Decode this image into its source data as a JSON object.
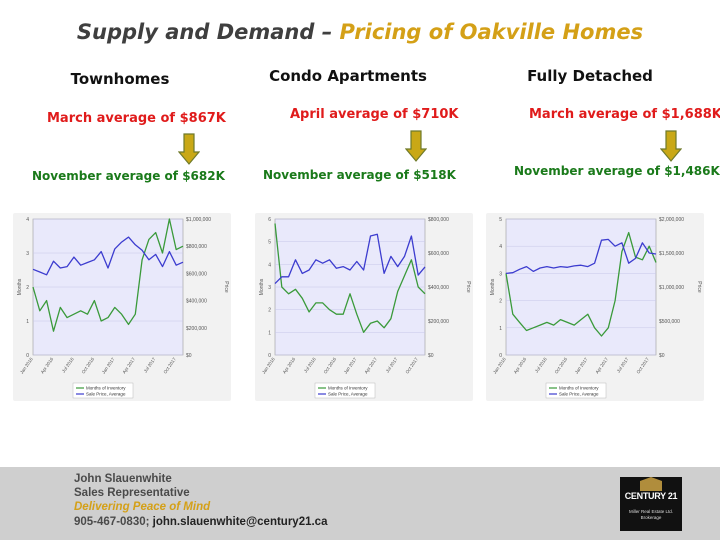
{
  "title": {
    "part1": "Supply and Demand –",
    "part2": "Pricing of Oakville Homes"
  },
  "columns": [
    {
      "heading": "Townhomes",
      "top_avg": "March average of $867K",
      "bottom_avg": "November average of $682K"
    },
    {
      "heading": "Condo Apartments",
      "top_avg": "April average of $710K",
      "bottom_avg": "November average of $518K"
    },
    {
      "heading": "Fully Detached",
      "top_avg": "March average of $1,688K",
      "bottom_avg": "November average of $1,486K"
    }
  ],
  "chart_data": [
    {
      "type": "line",
      "title": "Townhomes",
      "x": [
        "Jan 2016",
        "Feb 2016",
        "Mar 2016",
        "Apr 2016",
        "May 2016",
        "Jun 2016",
        "Jul 2016",
        "Aug 2016",
        "Sep 2016",
        "Oct 2016",
        "Nov 2016",
        "Dec 2016",
        "Jan 2017",
        "Feb 2017",
        "Mar 2017",
        "Apr 2017",
        "May 2017",
        "Jun 2017",
        "Jul 2017",
        "Aug 2017",
        "Sep 2017",
        "Oct 2017",
        "Nov 2017"
      ],
      "x_tick_labels": [
        "Jan 2016",
        "Apr 2016",
        "Jul 2016",
        "Oct 2016",
        "Jan 2017",
        "Apr 2017",
        "Jul 2017",
        "Oct 2017"
      ],
      "ylabel": "Months",
      "y2label": "Price",
      "ylim": [
        0,
        4
      ],
      "y2lim": [
        0,
        1000000
      ],
      "y_ticks": [
        "0",
        "1",
        "2",
        "3",
        "4"
      ],
      "y2_ticks": [
        "$0",
        "$200,000",
        "$400,000",
        "$600,000",
        "$800,000",
        "$1,000,000"
      ],
      "series": [
        {
          "name": "Months of Inventory",
          "color": "#3a9a3a",
          "axis": "left",
          "values": [
            2.0,
            1.3,
            1.6,
            0.7,
            1.4,
            1.1,
            1.2,
            1.3,
            1.2,
            1.6,
            1.0,
            1.1,
            1.4,
            1.2,
            0.9,
            1.2,
            2.8,
            3.4,
            3.6,
            3.0,
            4.0,
            3.1,
            3.2
          ]
        },
        {
          "name": "Sale Price, Average",
          "color": "#3c3ccf",
          "axis": "right",
          "values": [
            630000,
            610000,
            590000,
            690000,
            640000,
            650000,
            720000,
            660000,
            680000,
            700000,
            760000,
            640000,
            780000,
            830000,
            867000,
            810000,
            770000,
            700000,
            740000,
            650000,
            760000,
            660000,
            682000
          ]
        }
      ],
      "legend": [
        "Months of Inventory",
        "Sale Price, Average"
      ],
      "legend_position": "bottom",
      "grid": true
    },
    {
      "type": "line",
      "title": "Condo Apartments",
      "x": [
        "Jan 2016",
        "Feb 2016",
        "Mar 2016",
        "Apr 2016",
        "May 2016",
        "Jun 2016",
        "Jul 2016",
        "Aug 2016",
        "Sep 2016",
        "Oct 2016",
        "Nov 2016",
        "Dec 2016",
        "Jan 2017",
        "Feb 2017",
        "Mar 2017",
        "Apr 2017",
        "May 2017",
        "Jun 2017",
        "Jul 2017",
        "Aug 2017",
        "Sep 2017",
        "Oct 2017",
        "Nov 2017"
      ],
      "x_tick_labels": [
        "Jan 2016",
        "Apr 2016",
        "Jul 2016",
        "Oct 2016",
        "Jan 2017",
        "Apr 2017",
        "Jul 2017",
        "Oct 2017"
      ],
      "ylabel": "Months",
      "y2label": "Price",
      "ylim": [
        0,
        6
      ],
      "y2lim": [
        0,
        800000
      ],
      "y_ticks": [
        "0",
        "1",
        "2",
        "3",
        "4",
        "5",
        "6"
      ],
      "y2_ticks": [
        "$0",
        "$200,000",
        "$400,000",
        "$600,000",
        "$800,000"
      ],
      "series": [
        {
          "name": "Months of Inventory",
          "color": "#3a9a3a",
          "axis": "left",
          "values": [
            5.8,
            3.0,
            2.7,
            2.9,
            2.5,
            1.9,
            2.3,
            2.3,
            2.0,
            1.8,
            1.8,
            2.7,
            1.8,
            1.0,
            1.4,
            1.5,
            1.2,
            1.6,
            2.8,
            3.5,
            4.2,
            3.0,
            2.7
          ]
        },
        {
          "name": "Sale Price, Average",
          "color": "#3c3ccf",
          "axis": "right",
          "values": [
            420000,
            460000,
            460000,
            560000,
            480000,
            500000,
            560000,
            540000,
            560000,
            510000,
            520000,
            500000,
            550000,
            500000,
            700000,
            710000,
            480000,
            580000,
            520000,
            580000,
            700000,
            470000,
            518000
          ]
        }
      ],
      "legend": [
        "Months of Inventory",
        "Sale Price, Average"
      ],
      "legend_position": "bottom",
      "grid": true
    },
    {
      "type": "line",
      "title": "Fully Detached",
      "x": [
        "Jan 2016",
        "Feb 2016",
        "Mar 2016",
        "Apr 2016",
        "May 2016",
        "Jun 2016",
        "Jul 2016",
        "Aug 2016",
        "Sep 2016",
        "Oct 2016",
        "Nov 2016",
        "Dec 2016",
        "Jan 2017",
        "Feb 2017",
        "Mar 2017",
        "Apr 2017",
        "May 2017",
        "Jun 2017",
        "Jul 2017",
        "Aug 2017",
        "Sep 2017",
        "Oct 2017",
        "Nov 2017"
      ],
      "x_tick_labels": [
        "Jan 2016",
        "Apr 2016",
        "Jul 2016",
        "Oct 2016",
        "Jan 2017",
        "Apr 2017",
        "Jul 2017",
        "Oct 2017"
      ],
      "ylabel": "Months",
      "y2label": "Price",
      "ylim": [
        0,
        5
      ],
      "y2lim": [
        0,
        2000000
      ],
      "y_ticks": [
        "0",
        "1",
        "2",
        "3",
        "4",
        "5"
      ],
      "y2_ticks": [
        "$0",
        "$500,000",
        "$1,000,000",
        "$1,500,000",
        "$2,000,000"
      ],
      "series": [
        {
          "name": "Months of Inventory",
          "color": "#3a9a3a",
          "axis": "left",
          "values": [
            3.0,
            1.5,
            1.2,
            0.9,
            1.0,
            1.1,
            1.2,
            1.1,
            1.3,
            1.2,
            1.1,
            1.3,
            1.5,
            1.0,
            0.7,
            1.0,
            2.0,
            3.8,
            4.5,
            3.6,
            3.5,
            4.0,
            3.4
          ]
        },
        {
          "name": "Sale Price, Average",
          "color": "#3c3ccf",
          "axis": "right",
          "values": [
            1200000,
            1210000,
            1260000,
            1300000,
            1230000,
            1280000,
            1300000,
            1280000,
            1300000,
            1290000,
            1310000,
            1320000,
            1300000,
            1350000,
            1688000,
            1700000,
            1600000,
            1650000,
            1350000,
            1420000,
            1650000,
            1500000,
            1486000
          ]
        }
      ],
      "legend": [
        "Months of Inventory",
        "Sale Price, Average"
      ],
      "legend_position": "bottom",
      "grid": true
    }
  ],
  "footer": {
    "name": "John Slauenwhite",
    "role": "Sales Representative",
    "slogan": "Delivering Peace of Mind",
    "phone": "905-467-0830;",
    "email": "john.slauenwhite@century21.ca"
  },
  "logo": {
    "brand": "CENTURY 21",
    "small_text": "Miller Real Estate Ltd. Brokerage"
  },
  "colors": {
    "accent_gold": "#d4a017",
    "red": "#e01b1b",
    "green": "#1a7a1a",
    "blue_line": "#3c3ccf",
    "green_line": "#3a9a3a"
  }
}
